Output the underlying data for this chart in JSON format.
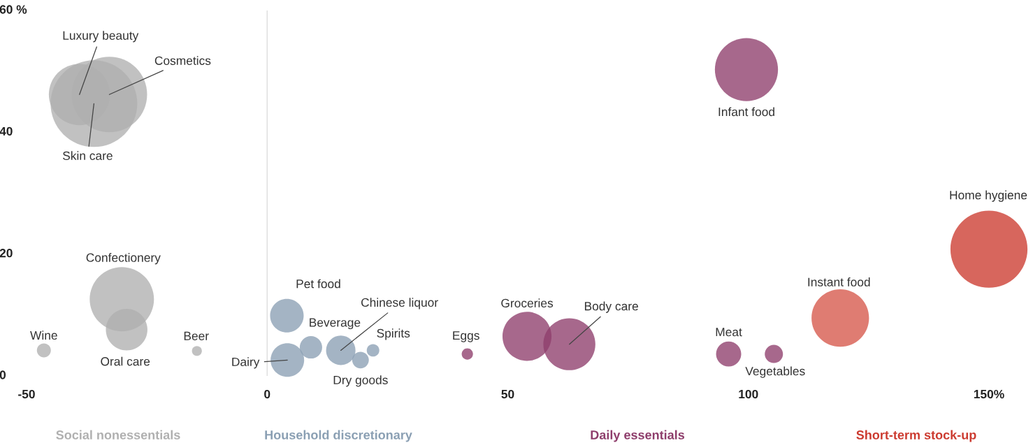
{
  "chart_data": {
    "type": "bubble",
    "series": [
      {
        "name": "Social nonessentials",
        "color": "#b0b0b0",
        "x": [
          -39,
          -32.8,
          -36,
          -30.2,
          -29.2,
          -46.4,
          -14.6
        ],
        "values": [
          46.2,
          46.2,
          44.7,
          12.6,
          7.6,
          4.2,
          4.1
        ],
        "sizes": [
          0.5,
          0.76,
          1,
          0.55,
          0.23,
          0.026,
          0.013
        ]
      },
      {
        "name": "Household discretionary",
        "color": "#8a9fb3",
        "x": [
          4.1,
          4.2,
          9.1,
          15.3,
          19.4,
          22
        ],
        "values": [
          9.9,
          2.6,
          4.7,
          4.2,
          2.6,
          4.2
        ],
        "sizes": [
          0.15,
          0.15,
          0.067,
          0.115,
          0.037,
          0.021
        ]
      },
      {
        "name": "Daily essentials",
        "color": "#8e3d6b",
        "x": [
          41.6,
          54,
          62.8,
          99.6,
          95.9,
          105.3
        ],
        "values": [
          3.6,
          6.5,
          5.2,
          50.3,
          3.6,
          3.6
        ],
        "sizes": [
          0.017,
          0.32,
          0.36,
          0.53,
          0.084,
          0.044
        ]
      },
      {
        "name": "Short-term stock-up",
        "color": "#cc3b30",
        "x": [
          119.1,
          150
        ],
        "values": [
          9.5,
          20.8
        ],
        "sizes": [
          0.44,
          0.79
        ],
        "colors": [
          "#d6574a",
          "#cc3b30"
        ]
      }
    ],
    "xlim": [
      -50,
      150
    ],
    "ylim": [
      0,
      60
    ],
    "xticks": [
      -50,
      0,
      50,
      100,
      {
        "value": 150,
        "label": "150%"
      }
    ],
    "yticks": [
      0,
      20,
      40,
      {
        "value": 60,
        "label": "60 %"
      }
    ],
    "ref_lines": [
      {
        "axis": "x",
        "value": 0,
        "color": "#dddddd"
      }
    ],
    "legend": "bottom",
    "grid": false,
    "annotations": [
      {
        "text": "Luxury beauty",
        "x": -39,
        "y": 46.2
      },
      {
        "text": "Cosmetics",
        "x": -32.8,
        "y": 46.2
      },
      {
        "text": "Skin care",
        "x": -36,
        "y": 44.7
      },
      "Confectionery",
      "Oral care",
      "Wine",
      "Beer",
      "Pet food",
      {
        "text": "Dairy",
        "x": 4.2,
        "y": 2.6
      },
      "Beverage",
      {
        "text": "Chinese liquor",
        "x": 15.3,
        "y": 4.2
      },
      "Dry goods",
      "Spirits",
      "Eggs",
      "Groceries",
      {
        "text": "Body care",
        "x": 62.8,
        "y": 5.2
      },
      "Infant food",
      "Meat",
      "Vegetables",
      "Instant food",
      "Home hygiene"
    ]
  }
}
